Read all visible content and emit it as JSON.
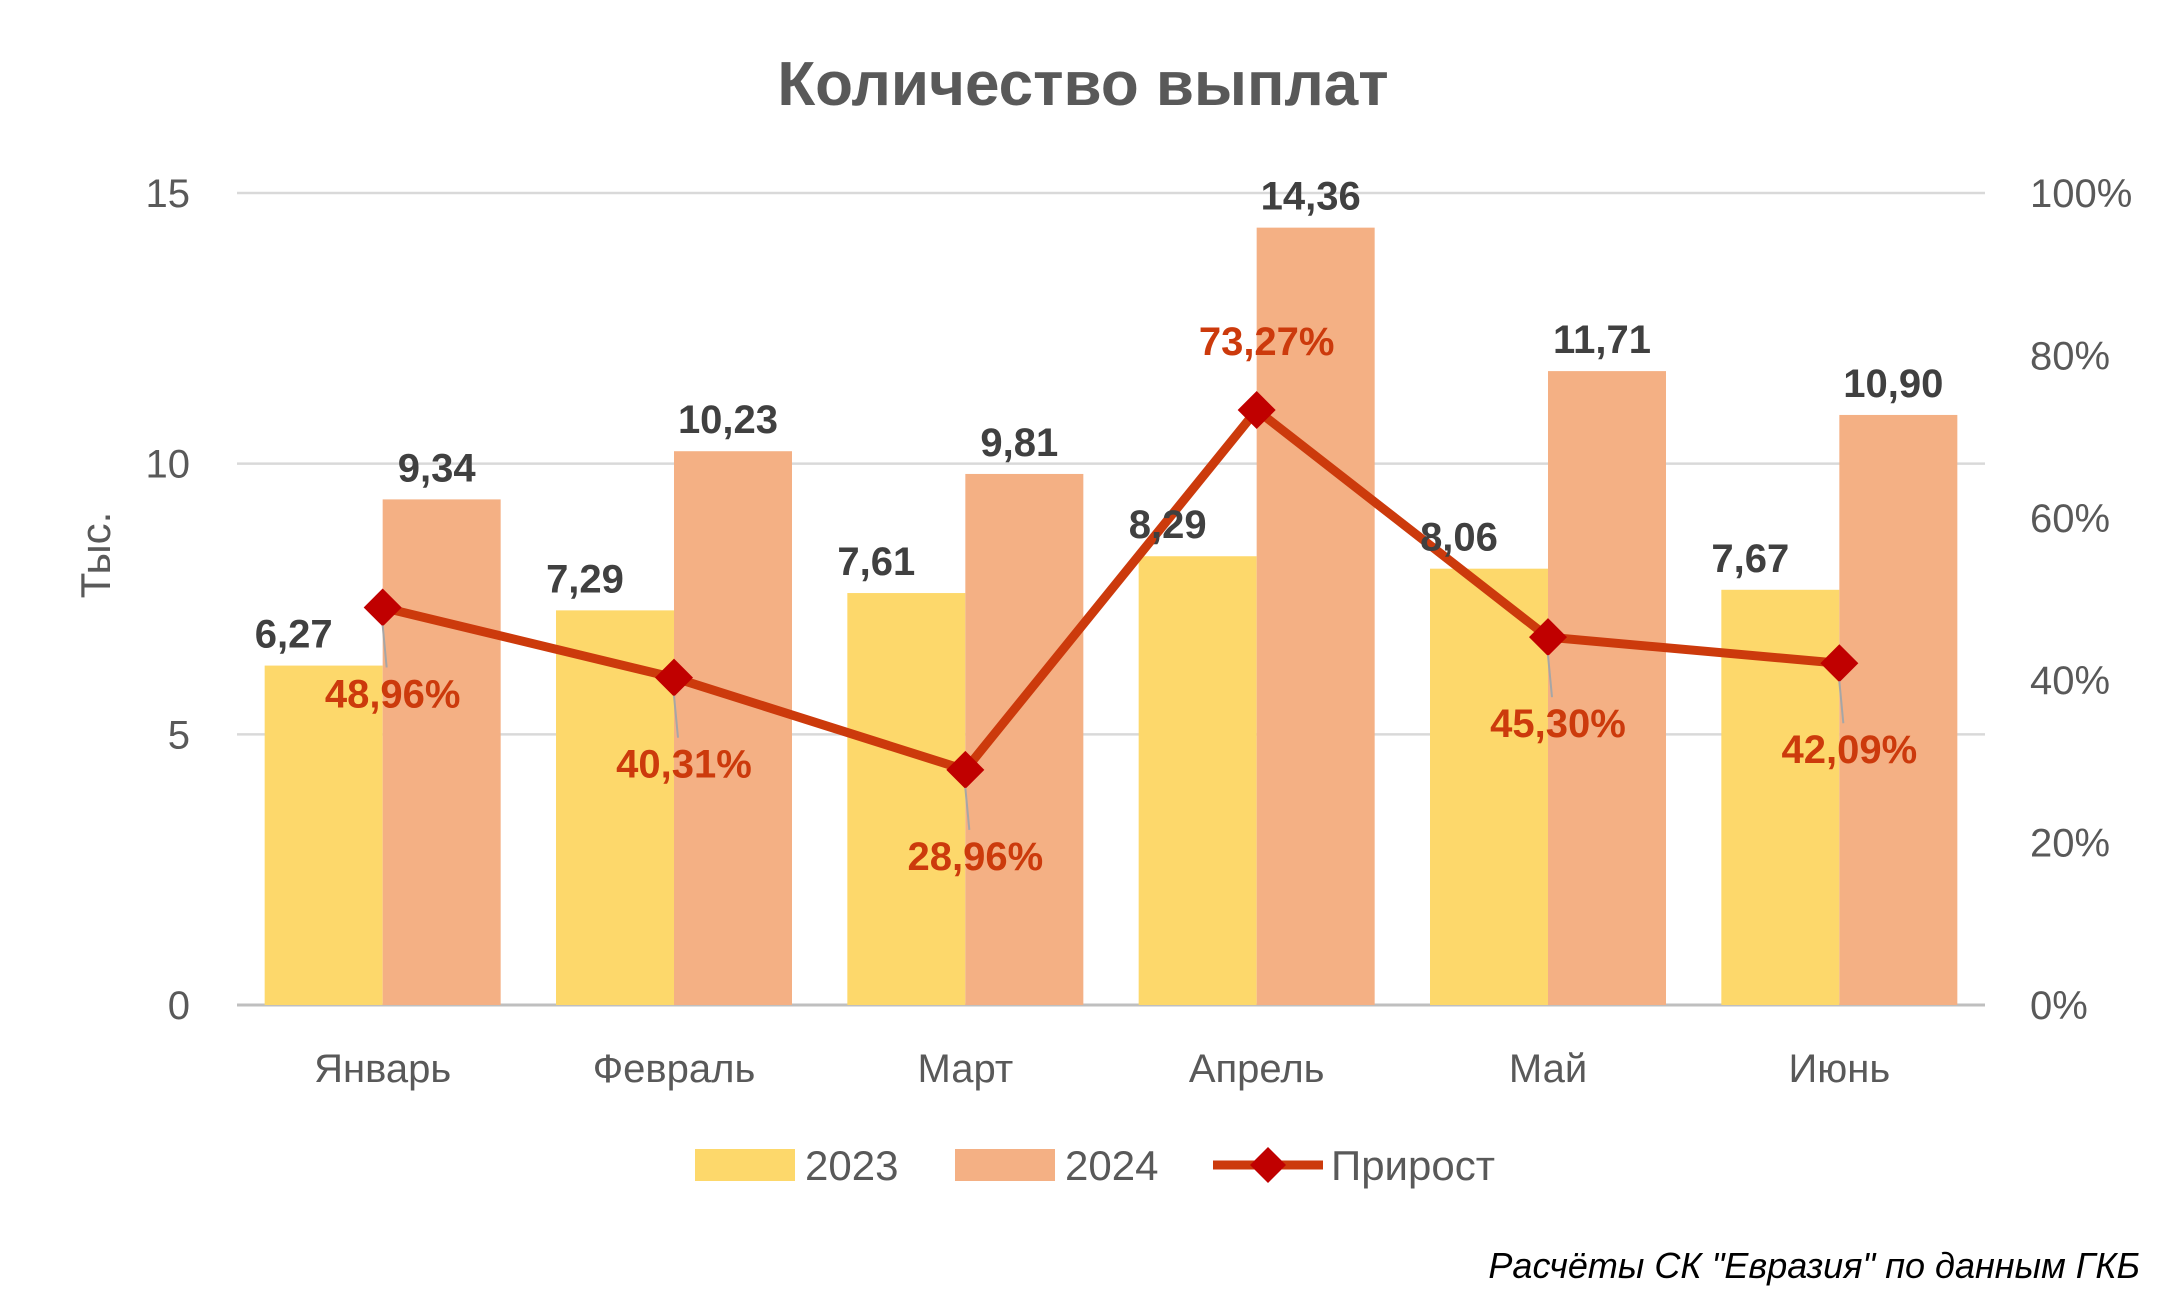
{
  "chart_data": {
    "type": "bar",
    "title": "Количество выплат",
    "ylabel": "Тыс.",
    "ylim": [
      0,
      15
    ],
    "yticks": [
      0,
      5,
      10,
      15
    ],
    "y2lim": [
      0,
      100
    ],
    "y2ticks": [
      "0%",
      "20%",
      "40%",
      "60%",
      "80%",
      "100%"
    ],
    "categories": [
      "Январь",
      "Февраль",
      "Март",
      "Апрель",
      "Май",
      "Июнь"
    ],
    "series": [
      {
        "name": "2023",
        "type": "bar",
        "color": "#fdd86b",
        "values": [
          6.27,
          7.29,
          7.61,
          8.29,
          8.06,
          7.67
        ],
        "labels": [
          "6,27",
          "7,29",
          "7,61",
          "8,29",
          "8,06",
          "7,67"
        ]
      },
      {
        "name": "2024",
        "type": "bar",
        "color": "#f4b084",
        "values": [
          9.34,
          10.23,
          9.81,
          14.36,
          11.71,
          10.9
        ],
        "labels": [
          "9,34",
          "10,23",
          "9,81",
          "14,36",
          "11,71",
          "10,90"
        ]
      },
      {
        "name": "Прирост",
        "type": "line",
        "axis": "secondary",
        "color": "#cc3a0c",
        "marker_color": "#c00000",
        "values": [
          48.96,
          40.31,
          28.96,
          73.27,
          45.3,
          42.09
        ],
        "labels": [
          "48,96%",
          "40,31%",
          "28,96%",
          "73,27%",
          "45,30%",
          "42,09%"
        ]
      }
    ],
    "legend_position": "bottom",
    "grid": true
  },
  "source_note": "Расчёты СК \"Евразия\" по данным ГКБ"
}
